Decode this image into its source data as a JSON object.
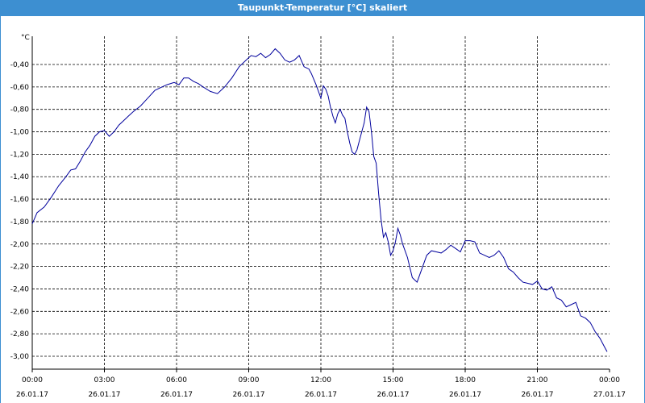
{
  "window": {
    "title": "Taupunkt-Temperatur [°C] skaliert"
  },
  "colors": {
    "titlebar": "#3d8fd1",
    "series": "#00009c",
    "grid": "#000000"
  },
  "chart_data": {
    "type": "line",
    "title": "Taupunkt-Temperatur [°C] skaliert",
    "ylabel": "°C",
    "xlabel": "",
    "grid": true,
    "xlim": [
      0,
      24
    ],
    "ylim": [
      -3.1,
      -0.2
    ],
    "y_ticks": [
      -0.4,
      -0.6,
      -0.8,
      -1.0,
      -1.2,
      -1.4,
      -1.6,
      -1.8,
      -2.0,
      -2.2,
      -2.4,
      -2.6,
      -2.8,
      -3.0
    ],
    "y_tick_labels": [
      "-0,40",
      "-0,60",
      "-0,80",
      "-1,00",
      "-1,20",
      "-1,40",
      "-1,60",
      "-1,80",
      "-2,00",
      "-2,20",
      "-2,40",
      "-2,60",
      "-2,80",
      "-3,00"
    ],
    "x_ticks": [
      {
        "time": "00:00",
        "date": "26.01.17"
      },
      {
        "time": "03:00",
        "date": "26.01.17"
      },
      {
        "time": "06:00",
        "date": "26.01.17"
      },
      {
        "time": "09:00",
        "date": "26.01.17"
      },
      {
        "time": "12:00",
        "date": "26.01.17"
      },
      {
        "time": "15:00",
        "date": "26.01.17"
      },
      {
        "time": "18:00",
        "date": "26.01.17"
      },
      {
        "time": "21:00",
        "date": "26.01.17"
      },
      {
        "time": "00:00",
        "date": "27.01.17"
      }
    ],
    "series": [
      {
        "color": "#00009c",
        "x": [
          0.0,
          0.2,
          0.5,
          0.8,
          1.1,
          1.4,
          1.6,
          1.8,
          2.0,
          2.2,
          2.4,
          2.6,
          2.8,
          3.0,
          3.2,
          3.4,
          3.6,
          3.8,
          4.0,
          4.2,
          4.5,
          4.8,
          5.1,
          5.4,
          5.6,
          5.9,
          6.1,
          6.3,
          6.5,
          6.7,
          6.9,
          7.1,
          7.4,
          7.7,
          8.0,
          8.3,
          8.6,
          8.9,
          9.1,
          9.3,
          9.5,
          9.7,
          9.9,
          10.1,
          10.3,
          10.5,
          10.7,
          10.9,
          11.1,
          11.3,
          11.5,
          11.6,
          11.8,
          12.0,
          12.1,
          12.2,
          12.3,
          12.4,
          12.5,
          12.6,
          12.7,
          12.8,
          12.9,
          13.0,
          13.1,
          13.2,
          13.3,
          13.4,
          13.5,
          13.6,
          13.7,
          13.8,
          13.9,
          14.0,
          14.1,
          14.2,
          14.3,
          14.4,
          14.5,
          14.6,
          14.7,
          14.8,
          14.9,
          15.0,
          15.1,
          15.2,
          15.3,
          15.4,
          15.6,
          15.8,
          16.0,
          16.2,
          16.4,
          16.6,
          16.8,
          17.0,
          17.2,
          17.4,
          17.6,
          17.8,
          18.0,
          18.2,
          18.4,
          18.6,
          18.8,
          19.0,
          19.2,
          19.4,
          19.6,
          19.8,
          20.0,
          20.2,
          20.4,
          20.6,
          20.8,
          21.0,
          21.2,
          21.4,
          21.6,
          21.8,
          22.0,
          22.2,
          22.4,
          22.6,
          22.8,
          23.0,
          23.2,
          23.4,
          23.6,
          23.8,
          23.9
        ],
        "y": [
          -1.82,
          -1.72,
          -1.67,
          -1.58,
          -1.48,
          -1.4,
          -1.34,
          -1.33,
          -1.26,
          -1.18,
          -1.12,
          -1.04,
          -1.0,
          -0.99,
          -1.04,
          -1.0,
          -0.94,
          -0.9,
          -0.86,
          -0.82,
          -0.77,
          -0.7,
          -0.63,
          -0.6,
          -0.58,
          -0.56,
          -0.58,
          -0.52,
          -0.52,
          -0.55,
          -0.57,
          -0.6,
          -0.64,
          -0.66,
          -0.6,
          -0.52,
          -0.42,
          -0.36,
          -0.32,
          -0.33,
          -0.3,
          -0.34,
          -0.31,
          -0.26,
          -0.3,
          -0.36,
          -0.38,
          -0.36,
          -0.32,
          -0.42,
          -0.44,
          -0.48,
          -0.58,
          -0.7,
          -0.59,
          -0.62,
          -0.68,
          -0.78,
          -0.86,
          -0.92,
          -0.84,
          -0.8,
          -0.85,
          -0.88,
          -1.0,
          -1.1,
          -1.18,
          -1.2,
          -1.16,
          -1.08,
          -1.0,
          -0.92,
          -0.78,
          -0.82,
          -1.0,
          -1.22,
          -1.28,
          -1.55,
          -1.78,
          -1.94,
          -1.9,
          -1.98,
          -2.1,
          -2.06,
          -1.98,
          -1.86,
          -1.92,
          -2.0,
          -2.12,
          -2.3,
          -2.34,
          -2.22,
          -2.1,
          -2.06,
          -2.07,
          -2.08,
          -2.05,
          -2.01,
          -2.04,
          -2.07,
          -1.97,
          -1.97,
          -1.98,
          -2.08,
          -2.1,
          -2.12,
          -2.1,
          -2.06,
          -2.12,
          -2.22,
          -2.25,
          -2.3,
          -2.34,
          -2.35,
          -2.36,
          -2.33,
          -2.4,
          -2.41,
          -2.38,
          -2.48,
          -2.5,
          -2.56,
          -2.54,
          -2.52,
          -2.64,
          -2.66,
          -2.7,
          -2.78,
          -2.84,
          -2.92,
          -2.96
        ]
      }
    ]
  }
}
